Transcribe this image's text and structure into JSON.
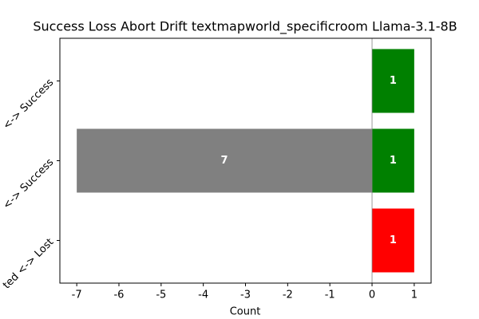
{
  "chart_data": {
    "type": "hbar",
    "title": "Success Loss Abort Drift  textmapworld_specificroom Llama-3.1-8B",
    "x_label": "Count",
    "categories": [
      "<-> Success",
      "<-> Success",
      "ted <-> Lost"
    ],
    "series": [
      {
        "color": "#808080",
        "values": [
          null,
          -7,
          null
        ],
        "value_labels": [
          null,
          "7",
          null
        ]
      },
      {
        "color": "#008000",
        "values": [
          1,
          1,
          null
        ]
      },
      {
        "color": "#ff0000",
        "values": [
          null,
          null,
          1
        ]
      }
    ],
    "xlim": [
      -7.4,
      1.4
    ],
    "xticks": [
      -7,
      -6,
      -5,
      -4,
      -3,
      -2,
      -1,
      0,
      1
    ]
  }
}
